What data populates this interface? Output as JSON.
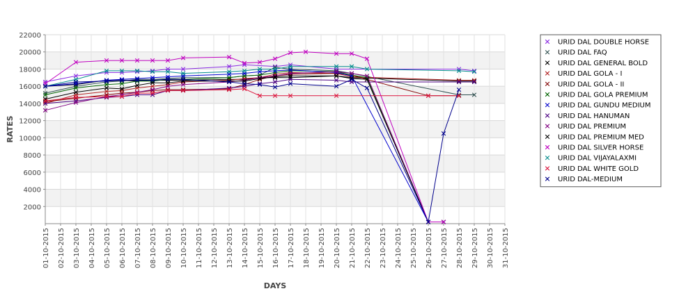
{
  "chart_data": {
    "type": "line",
    "title": "",
    "xlabel": "DAYS",
    "ylabel": "RATES",
    "x": [
      "01-10-2015",
      "02-10-2015",
      "03-10-2015",
      "04-10-2015",
      "05-10-2015",
      "06-10-2015",
      "07-10-2015",
      "08-10-2015",
      "09-10-2015",
      "10-10-2015",
      "11-10-2015",
      "12-10-2015",
      "13-10-2015",
      "14-10-2015",
      "15-10-2015",
      "16-10-2015",
      "17-10-2015",
      "18-10-2015",
      "19-10-2015",
      "20-10-2015",
      "21-10-2015",
      "22-10-2015",
      "23-10-2015",
      "24-10-2015",
      "25-10-2015",
      "26-10-2015",
      "27-10-2015",
      "28-10-2015",
      "29-10-2015",
      "30-10-2015",
      "31-10-2015"
    ],
    "yticks": [
      2000,
      4000,
      6000,
      8000,
      10000,
      12000,
      14000,
      16000,
      18000,
      20000,
      22000
    ],
    "ylim": [
      0,
      22000
    ],
    "grid": true,
    "legend_position": "right",
    "series": [
      {
        "name": "URID DAL DOUBLE HORSE",
        "color": "#8a2be2",
        "points": [
          [
            0,
            16500
          ],
          [
            2,
            17200
          ],
          [
            4,
            17600
          ],
          [
            5,
            17600
          ],
          [
            6,
            17700
          ],
          [
            7,
            17800
          ],
          [
            8,
            18000
          ],
          [
            9,
            18000
          ],
          [
            12,
            18300
          ],
          [
            13,
            18500
          ],
          [
            15,
            18300
          ],
          [
            16,
            18500
          ],
          [
            19,
            18000
          ],
          [
            27,
            18000
          ],
          [
            28,
            17800
          ]
        ]
      },
      {
        "name": "URID DAL FAQ",
        "color": "#2f4f4f",
        "points": [
          [
            0,
            15200
          ],
          [
            2,
            16000
          ],
          [
            4,
            16500
          ],
          [
            5,
            16600
          ],
          [
            6,
            16800
          ],
          [
            7,
            16800
          ],
          [
            8,
            16900
          ],
          [
            9,
            17000
          ],
          [
            12,
            17000
          ],
          [
            13,
            17200
          ],
          [
            14,
            17300
          ],
          [
            15,
            18200
          ],
          [
            16,
            18000
          ],
          [
            19,
            17800
          ],
          [
            20,
            17500
          ],
          [
            27,
            15000
          ],
          [
            28,
            15000
          ]
        ]
      },
      {
        "name": "URID DAL GENERAL BOLD",
        "color": "#000000",
        "points": [
          [
            0,
            16000
          ],
          [
            2,
            16200
          ],
          [
            4,
            16700
          ],
          [
            5,
            16700
          ],
          [
            6,
            16600
          ],
          [
            7,
            16700
          ],
          [
            8,
            16700
          ],
          [
            9,
            16700
          ],
          [
            12,
            16800
          ],
          [
            13,
            16800
          ],
          [
            14,
            17000
          ],
          [
            15,
            17000
          ],
          [
            16,
            17000
          ],
          [
            19,
            17200
          ],
          [
            20,
            17000
          ],
          [
            27,
            16600
          ],
          [
            28,
            16600
          ]
        ]
      },
      {
        "name": "URID DAL GOLA - I",
        "color": "#b22222",
        "points": [
          [
            0,
            14000
          ],
          [
            2,
            15000
          ],
          [
            4,
            15400
          ],
          [
            5,
            15500
          ],
          [
            6,
            15800
          ],
          [
            7,
            16000
          ],
          [
            8,
            16200
          ],
          [
            9,
            16500
          ],
          [
            12,
            16700
          ],
          [
            13,
            16900
          ],
          [
            14,
            17000
          ],
          [
            15,
            17400
          ],
          [
            16,
            17600
          ],
          [
            19,
            17500
          ],
          [
            20,
            17100
          ],
          [
            27,
            16700
          ],
          [
            28,
            16700
          ]
        ]
      },
      {
        "name": "URID DAL GOLA - II",
        "color": "#800000",
        "points": [
          [
            0,
            14200
          ],
          [
            2,
            14600
          ],
          [
            4,
            15000
          ],
          [
            5,
            15200
          ],
          [
            6,
            15300
          ],
          [
            7,
            15500
          ],
          [
            8,
            15600
          ],
          [
            9,
            15600
          ],
          [
            12,
            15700
          ],
          [
            13,
            16200
          ],
          [
            14,
            16800
          ],
          [
            15,
            17200
          ],
          [
            16,
            17400
          ],
          [
            19,
            17500
          ],
          [
            20,
            17300
          ],
          [
            21,
            16800
          ],
          [
            25,
            14900
          ],
          [
            27,
            14900
          ]
        ]
      },
      {
        "name": "URID DAL GOLA PREMIUM",
        "color": "#006400",
        "points": [
          [
            0,
            15000
          ],
          [
            2,
            15800
          ],
          [
            4,
            16200
          ],
          [
            5,
            16300
          ],
          [
            6,
            16600
          ],
          [
            7,
            16600
          ],
          [
            8,
            16800
          ],
          [
            9,
            16800
          ],
          [
            12,
            17000
          ],
          [
            13,
            17200
          ],
          [
            14,
            17300
          ],
          [
            15,
            17600
          ],
          [
            16,
            17800
          ],
          [
            19,
            17700
          ],
          [
            20,
            17300
          ],
          [
            21,
            17000
          ],
          [
            25,
            200
          ],
          [
            26,
            200
          ]
        ]
      },
      {
        "name": "URID DAL GUNDU MEDIUM",
        "color": "#0000cd",
        "points": [
          [
            0,
            16000
          ],
          [
            2,
            16300
          ],
          [
            4,
            16700
          ],
          [
            5,
            16800
          ],
          [
            6,
            16900
          ],
          [
            7,
            17000
          ],
          [
            8,
            17100
          ],
          [
            9,
            17200
          ],
          [
            12,
            17400
          ],
          [
            13,
            17500
          ],
          [
            14,
            17700
          ],
          [
            15,
            17800
          ],
          [
            16,
            17900
          ],
          [
            19,
            17600
          ],
          [
            20,
            17200
          ],
          [
            25,
            200
          ],
          [
            26,
            200
          ]
        ]
      },
      {
        "name": "URID DAL HANUMAN",
        "color": "#4b0082",
        "points": [
          [
            0,
            14000
          ],
          [
            2,
            14300
          ],
          [
            4,
            14700
          ],
          [
            5,
            14800
          ],
          [
            6,
            15000
          ],
          [
            7,
            15000
          ],
          [
            8,
            15500
          ],
          [
            9,
            15500
          ],
          [
            12,
            15800
          ],
          [
            13,
            16000
          ],
          [
            14,
            16300
          ],
          [
            15,
            16500
          ],
          [
            16,
            16800
          ],
          [
            19,
            16700
          ],
          [
            20,
            16500
          ],
          [
            27,
            16500
          ],
          [
            28,
            16500
          ]
        ]
      },
      {
        "name": "URID DAL PREMIUM",
        "color": "#800080",
        "points": [
          [
            0,
            13200
          ],
          [
            2,
            14100
          ],
          [
            4,
            14800
          ],
          [
            5,
            15000
          ],
          [
            6,
            15300
          ],
          [
            7,
            15600
          ],
          [
            8,
            16000
          ],
          [
            9,
            16200
          ],
          [
            12,
            16500
          ],
          [
            13,
            16700
          ],
          [
            14,
            17000
          ],
          [
            15,
            17200
          ],
          [
            16,
            17500
          ],
          [
            19,
            17700
          ],
          [
            20,
            17500
          ],
          [
            21,
            17200
          ],
          [
            25,
            200
          ],
          [
            26,
            200
          ]
        ]
      },
      {
        "name": "URID DAL PREMIUM MED",
        "color": "#000000",
        "points": [
          [
            0,
            14500
          ],
          [
            2,
            15300
          ],
          [
            4,
            15800
          ],
          [
            5,
            15700
          ],
          [
            6,
            16100
          ],
          [
            7,
            16400
          ],
          [
            8,
            16400
          ],
          [
            9,
            16600
          ],
          [
            12,
            16600
          ],
          [
            13,
            16600
          ],
          [
            14,
            16900
          ],
          [
            15,
            17100
          ],
          [
            16,
            17200
          ],
          [
            19,
            17200
          ],
          [
            20,
            16900
          ],
          [
            21,
            16800
          ],
          [
            25,
            200
          ],
          [
            26,
            200
          ]
        ]
      },
      {
        "name": "URID DAL SILVER HORSE",
        "color": "#c000c0",
        "points": [
          [
            0,
            16300
          ],
          [
            2,
            18800
          ],
          [
            4,
            19000
          ],
          [
            5,
            19000
          ],
          [
            6,
            19000
          ],
          [
            7,
            19000
          ],
          [
            8,
            19000
          ],
          [
            9,
            19300
          ],
          [
            12,
            19400
          ],
          [
            13,
            18700
          ],
          [
            14,
            18800
          ],
          [
            15,
            19200
          ],
          [
            16,
            19900
          ],
          [
            17,
            20000
          ],
          [
            19,
            19800
          ],
          [
            20,
            19800
          ],
          [
            21,
            19200
          ],
          [
            25,
            200
          ],
          [
            26,
            200
          ]
        ]
      },
      {
        "name": "URID DAL VIJAYALAXMI",
        "color": "#008b8b",
        "points": [
          [
            0,
            16000
          ],
          [
            2,
            16800
          ],
          [
            4,
            17800
          ],
          [
            5,
            17800
          ],
          [
            6,
            17800
          ],
          [
            7,
            17700
          ],
          [
            8,
            17700
          ],
          [
            9,
            17500
          ],
          [
            12,
            17700
          ],
          [
            13,
            17800
          ],
          [
            14,
            18000
          ],
          [
            15,
            18000
          ],
          [
            16,
            18300
          ],
          [
            19,
            18300
          ],
          [
            20,
            18300
          ],
          [
            21,
            18000
          ],
          [
            27,
            17800
          ],
          [
            28,
            17700
          ]
        ]
      },
      {
        "name": "URID DAL WHITE GOLD",
        "color": "#dc143c",
        "points": [
          [
            0,
            14300
          ],
          [
            2,
            14700
          ],
          [
            4,
            14800
          ],
          [
            5,
            14800
          ],
          [
            6,
            15200
          ],
          [
            7,
            15200
          ],
          [
            8,
            15500
          ],
          [
            9,
            15500
          ],
          [
            12,
            15600
          ],
          [
            13,
            15700
          ],
          [
            14,
            14900
          ],
          [
            15,
            14900
          ],
          [
            16,
            14900
          ],
          [
            19,
            14900
          ],
          [
            25,
            14900
          ],
          [
            27,
            14900
          ]
        ]
      },
      {
        "name": "URID DAL-MEDIUM",
        "color": "#00008b",
        "points": [
          [
            0,
            16000
          ],
          [
            2,
            16500
          ],
          [
            4,
            16600
          ],
          [
            5,
            16700
          ],
          [
            6,
            16700
          ],
          [
            7,
            16700
          ],
          [
            8,
            16800
          ],
          [
            9,
            16800
          ],
          [
            12,
            16500
          ],
          [
            13,
            16300
          ],
          [
            14,
            16200
          ],
          [
            15,
            15900
          ],
          [
            16,
            16300
          ],
          [
            19,
            16000
          ],
          [
            20,
            16800
          ],
          [
            21,
            15800
          ],
          [
            25,
            200
          ],
          [
            26,
            10500
          ],
          [
            27,
            15600
          ]
        ]
      }
    ]
  }
}
